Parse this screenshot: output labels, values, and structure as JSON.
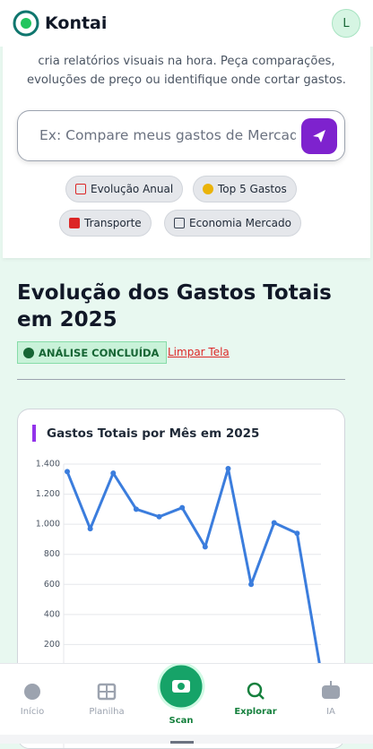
{
  "header": {
    "brand": "Kontai",
    "avatar": "L"
  },
  "panel": {
    "intro": "cria relatórios visuais na hora. Peça comparações, evoluções de preço ou identifique onde cortar gastos.",
    "placeholder": "Ex: Compare meus gastos de Mercado",
    "chips": [
      "Evolução Anual",
      "Top 5 Gastos",
      "Transporte",
      "Economia Mercado"
    ]
  },
  "section": {
    "title": "Evolução dos Gastos Totais em 2025",
    "badge": "ANÁLISE CONCLUÍDA",
    "clear": "Limpar Tela"
  },
  "chart_data": {
    "type": "line",
    "title": "Gastos Totais por Mês em 2025",
    "categories": [
      null,
      null,
      null,
      null,
      null,
      null,
      null,
      null,
      null,
      null,
      null,
      null
    ],
    "series": [
      {
        "name": "Gastos Totais",
        "color": "#3b7ddd",
        "values": [
          1350,
          970,
          1340,
          1100,
          1050,
          1110,
          850,
          1370,
          600,
          1010,
          940,
          50
        ]
      }
    ],
    "ylim": [
      0,
      1400
    ],
    "yticks": [
      {
        "value": 200,
        "label": "200"
      },
      {
        "value": 400,
        "label": "400"
      },
      {
        "value": 600,
        "label": "600"
      },
      {
        "value": 800,
        "label": "800"
      },
      {
        "value": 1000,
        "label": "1.000"
      },
      {
        "value": 1200,
        "label": "1.200"
      },
      {
        "value": 1400,
        "label": "1.400"
      }
    ],
    "grid": true
  },
  "nav": [
    "Início",
    "Planilha",
    "Scan",
    "Explorar",
    "IA"
  ]
}
